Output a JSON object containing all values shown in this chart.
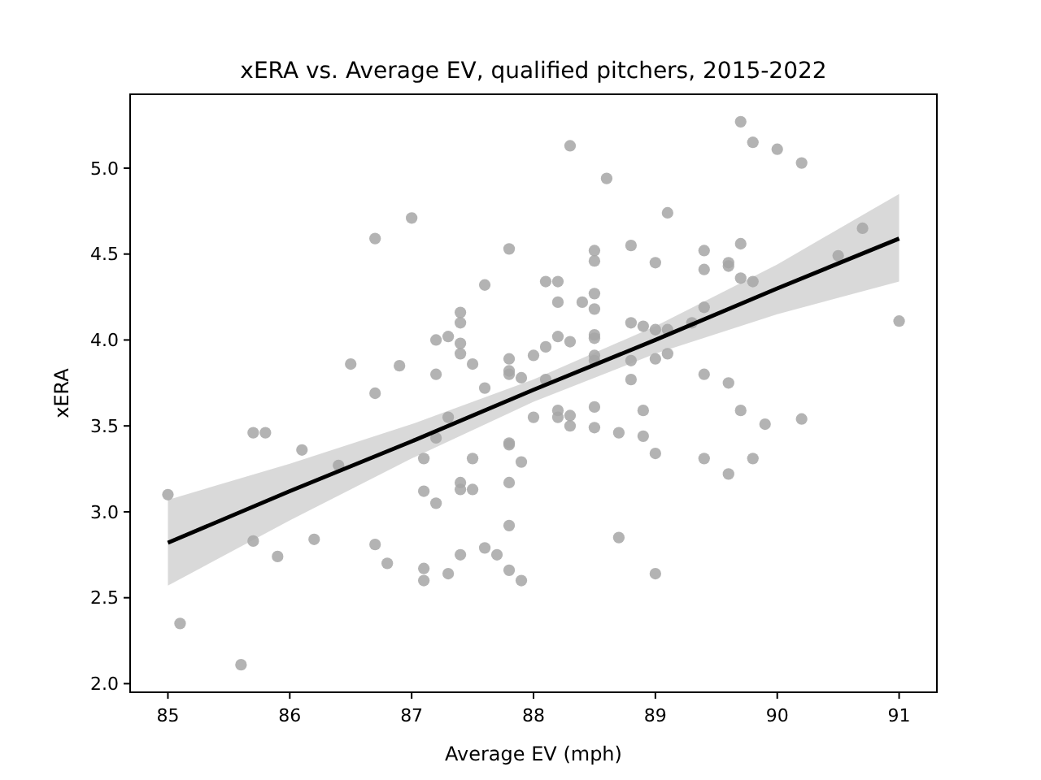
{
  "chart_data": {
    "type": "scatter",
    "title": "xERA vs. Average EV, qualified pitchers, 2015-2022",
    "xlabel": "Average EV (mph)",
    "ylabel": "xERA",
    "xlim": [
      84.69,
      91.31
    ],
    "xticks": [
      85,
      86,
      87,
      88,
      89,
      90,
      91
    ],
    "ylim": [
      1.95,
      5.43
    ],
    "yticks": [
      {
        "value": 2,
        "label": "2.0"
      },
      {
        "value": 2.5,
        "label": "2.5"
      },
      {
        "value": 3,
        "label": "3.0"
      },
      {
        "value": 3.5,
        "label": "3.5"
      },
      {
        "value": 4,
        "label": "4.0"
      },
      {
        "value": 4.5,
        "label": "4.5"
      },
      {
        "value": 5,
        "label": "5.0"
      }
    ],
    "grid": false,
    "series": [
      {
        "color": "#a6a6a6",
        "marker": "circle",
        "x": [
          85.0,
          85.1,
          85.6,
          85.7,
          85.8,
          85.7,
          85.9,
          86.1,
          86.2,
          86.4,
          86.5,
          86.7,
          86.7,
          86.7,
          86.8,
          86.9,
          87.0,
          87.1,
          87.1,
          87.1,
          87.1,
          87.2,
          87.2,
          87.2,
          87.2,
          87.3,
          87.3,
          87.3,
          87.4,
          87.4,
          87.4,
          87.4,
          87.4,
          87.4,
          87.4,
          87.5,
          87.5,
          87.5,
          87.6,
          87.6,
          87.6,
          87.7,
          87.8,
          87.8,
          87.8,
          87.8,
          87.8,
          87.8,
          87.8,
          87.8,
          87.8,
          87.9,
          87.9,
          87.9,
          88.0,
          88.0,
          88.1,
          88.1,
          88.1,
          88.2,
          88.2,
          88.2,
          88.2,
          88.2,
          88.3,
          88.3,
          88.3,
          88.3,
          88.4,
          88.5,
          88.5,
          88.5,
          88.5,
          88.5,
          88.5,
          88.5,
          88.5,
          88.5,
          88.5,
          88.6,
          88.7,
          88.7,
          88.8,
          88.8,
          88.8,
          88.8,
          88.9,
          88.9,
          88.9,
          89.0,
          89.0,
          89.0,
          89.0,
          89.0,
          89.1,
          89.1,
          89.1,
          89.3,
          89.4,
          89.4,
          89.4,
          89.4,
          89.4,
          89.6,
          89.6,
          89.6,
          89.6,
          89.7,
          89.7,
          89.7,
          89.7,
          89.8,
          89.8,
          89.8,
          89.9,
          90.0,
          90.2,
          90.2,
          90.5,
          90.7,
          91.0
        ],
        "values": [
          3.1,
          2.35,
          2.11,
          3.46,
          3.46,
          2.83,
          2.74,
          3.36,
          2.84,
          3.27,
          3.86,
          4.59,
          3.69,
          2.81,
          2.7,
          3.85,
          4.71,
          3.31,
          3.12,
          2.67,
          2.6,
          4.0,
          3.8,
          3.43,
          3.05,
          4.02,
          3.55,
          2.64,
          4.16,
          4.1,
          3.98,
          3.92,
          3.17,
          3.13,
          2.75,
          3.86,
          3.31,
          3.13,
          4.32,
          3.72,
          2.79,
          2.75,
          4.53,
          3.89,
          3.82,
          3.8,
          3.4,
          3.39,
          3.17,
          2.92,
          2.66,
          3.78,
          3.29,
          2.6,
          3.91,
          3.55,
          4.34,
          3.96,
          3.77,
          4.34,
          4.22,
          4.02,
          3.59,
          3.55,
          5.13,
          3.99,
          3.56,
          3.5,
          4.22,
          4.52,
          4.46,
          4.27,
          4.18,
          4.03,
          4.01,
          3.91,
          3.88,
          3.61,
          3.49,
          4.94,
          3.46,
          2.85,
          4.55,
          4.1,
          3.88,
          3.77,
          4.08,
          3.59,
          3.44,
          4.45,
          4.06,
          3.89,
          3.34,
          2.64,
          4.74,
          4.06,
          3.92,
          4.1,
          4.52,
          4.41,
          4.19,
          3.8,
          3.31,
          4.45,
          4.43,
          3.75,
          3.22,
          5.27,
          4.56,
          4.36,
          3.59,
          5.15,
          4.34,
          3.31,
          3.51,
          5.11,
          5.03,
          3.54,
          4.49,
          4.65,
          4.11
        ]
      },
      {
        "type": "line",
        "color": "#000000",
        "marker": "none",
        "line_style": "solid",
        "x": [
          85,
          86,
          87,
          88,
          89,
          90,
          91
        ],
        "values": [
          2.82,
          3.12,
          3.41,
          3.71,
          4.0,
          4.3,
          4.59
        ],
        "lower": [
          2.57,
          2.95,
          3.31,
          3.64,
          3.92,
          4.15,
          4.34
        ],
        "upper": [
          3.07,
          3.28,
          3.51,
          3.77,
          4.08,
          4.44,
          4.85
        ]
      }
    ]
  }
}
